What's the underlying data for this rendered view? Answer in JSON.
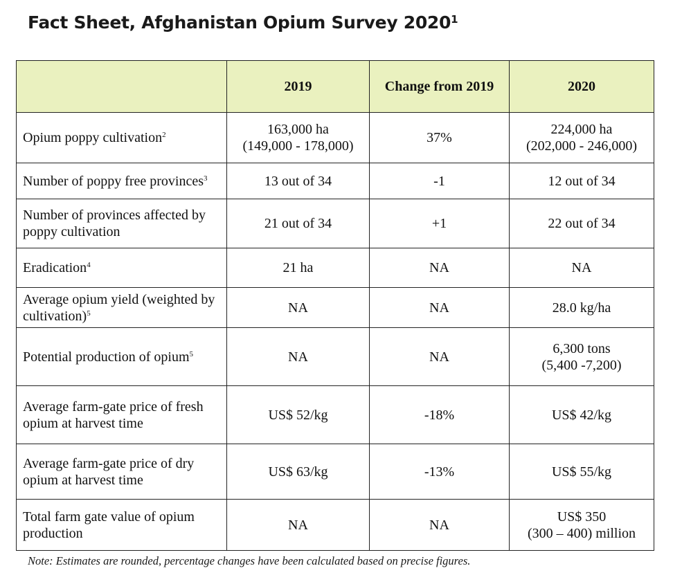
{
  "title": "Fact Sheet, Afghanistan Opium Survey 2020",
  "title_footnote": "1",
  "header": {
    "col_label": "",
    "col_2019": "2019",
    "col_change": "Change from 2019",
    "col_2020": "2020"
  },
  "rows": [
    {
      "label": "Opium poppy cultivation",
      "footnote": "2",
      "v2019": [
        "163,000 ha",
        "(149,000 - 178,000)"
      ],
      "change": "37%",
      "v2020": [
        "224,000 ha",
        "(202,000 - 246,000)"
      ]
    },
    {
      "label": "Number of poppy free provinces",
      "footnote": "3",
      "v2019": [
        "13 out of 34"
      ],
      "change": "-1",
      "v2020": [
        "12 out of 34"
      ]
    },
    {
      "label": "Number of provinces affected by poppy cultivation",
      "footnote": "",
      "v2019": [
        "21 out of 34"
      ],
      "change": "+1",
      "v2020": [
        "22 out of 34"
      ]
    },
    {
      "label": "Eradication",
      "footnote": "4",
      "v2019": [
        "21 ha"
      ],
      "change": "NA",
      "v2020": [
        "NA"
      ]
    },
    {
      "label": "Average opium yield (weighted by cultivation)",
      "footnote": "5",
      "v2019": [
        "NA"
      ],
      "change": "NA",
      "v2020": [
        "28.0 kg/ha"
      ]
    },
    {
      "label": "Potential production of opium",
      "footnote": "5",
      "v2019": [
        "NA"
      ],
      "change": "NA",
      "v2020": [
        "6,300 tons",
        "(5,400 -7,200)"
      ]
    },
    {
      "label": "Average farm-gate price of fresh opium at harvest time",
      "footnote": "",
      "v2019": [
        "US$ 52/kg"
      ],
      "change": "-18%",
      "v2020": [
        "US$ 42/kg"
      ]
    },
    {
      "label": "Average farm-gate price of dry opium at harvest time",
      "footnote": "",
      "v2019": [
        "US$ 63/kg"
      ],
      "change": "-13%",
      "v2020": [
        "US$ 55/kg"
      ]
    },
    {
      "label": "Total farm gate value of opium production",
      "footnote": "",
      "v2019": [
        "NA"
      ],
      "change": "NA",
      "v2020": [
        "US$ 350",
        "(300 – 400) million"
      ]
    }
  ],
  "note": "Note: Estimates are rounded, percentage changes have been calculated based on precise figures.",
  "colors": {
    "header_fill": "#eaf1bf",
    "border": "#222222"
  }
}
